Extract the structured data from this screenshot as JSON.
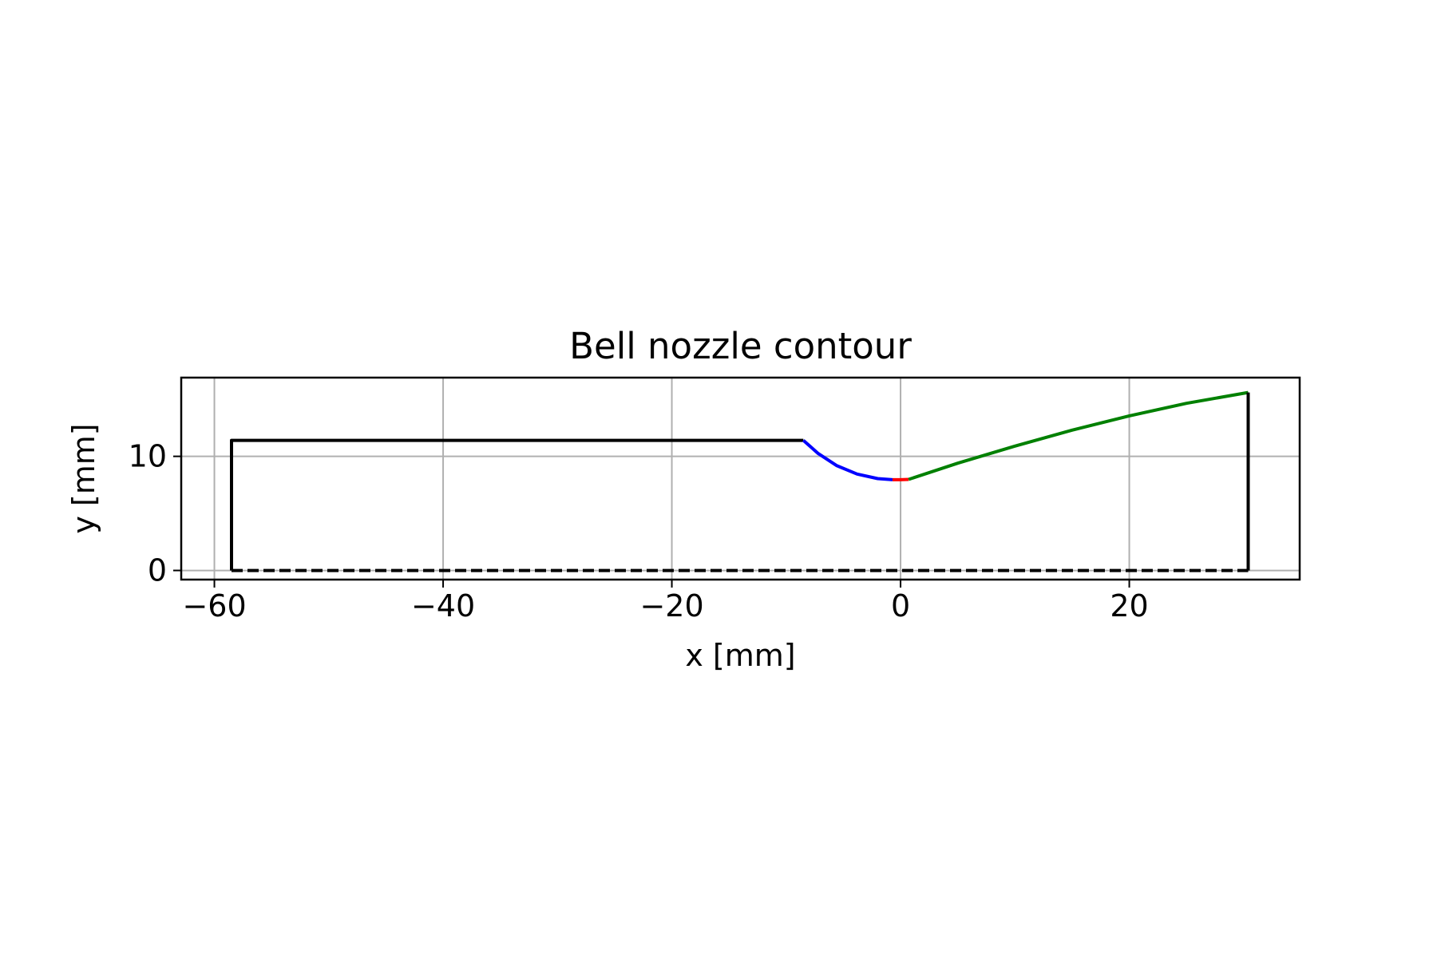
{
  "chart_data": {
    "type": "line",
    "title": "Bell nozzle contour",
    "xlabel": "x [mm]",
    "ylabel": "y [mm]",
    "xlim": [
      -62.9,
      34.9
    ],
    "ylim": [
      -0.8,
      16.9
    ],
    "grid": true,
    "x_ticks": [
      {
        "value": -60,
        "label": "−60"
      },
      {
        "value": -40,
        "label": "−40"
      },
      {
        "value": -20,
        "label": "−20"
      },
      {
        "value": 0,
        "label": "0"
      },
      {
        "value": 20,
        "label": "20"
      }
    ],
    "y_ticks": [
      {
        "value": 0,
        "label": "0"
      },
      {
        "value": 10,
        "label": "10"
      }
    ],
    "series": [
      {
        "key": "chamber",
        "color": "#000000",
        "dash": "solid",
        "points": [
          [
            -58.5,
            0
          ],
          [
            -58.5,
            11.4
          ],
          [
            -8.5,
            11.4
          ]
        ]
      },
      {
        "key": "converging-arc",
        "color": "#0000ff",
        "dash": "solid",
        "points": [
          [
            -8.5,
            11.4
          ],
          [
            -7.2,
            10.25
          ],
          [
            -5.6,
            9.2
          ],
          [
            -3.8,
            8.45
          ],
          [
            -2.0,
            8.05
          ],
          [
            -0.7,
            7.95
          ]
        ]
      },
      {
        "key": "throat-arc",
        "color": "#ff0000",
        "dash": "solid",
        "points": [
          [
            -0.7,
            7.95
          ],
          [
            0.0,
            7.95
          ],
          [
            0.7,
            7.98
          ]
        ]
      },
      {
        "key": "bell-section",
        "color": "#008000",
        "dash": "solid",
        "points": [
          [
            0.7,
            7.98
          ],
          [
            5,
            9.4
          ],
          [
            10,
            10.9
          ],
          [
            15,
            12.3
          ],
          [
            20,
            13.55
          ],
          [
            25,
            14.65
          ],
          [
            30.4,
            15.6
          ]
        ]
      },
      {
        "key": "exit-plane",
        "color": "#000000",
        "dash": "solid",
        "points": [
          [
            30.4,
            15.6
          ],
          [
            30.4,
            0
          ]
        ]
      },
      {
        "key": "centerline",
        "color": "#000000",
        "dash": "dashed",
        "points": [
          [
            -58.5,
            0
          ],
          [
            30.4,
            0
          ]
        ]
      }
    ]
  }
}
